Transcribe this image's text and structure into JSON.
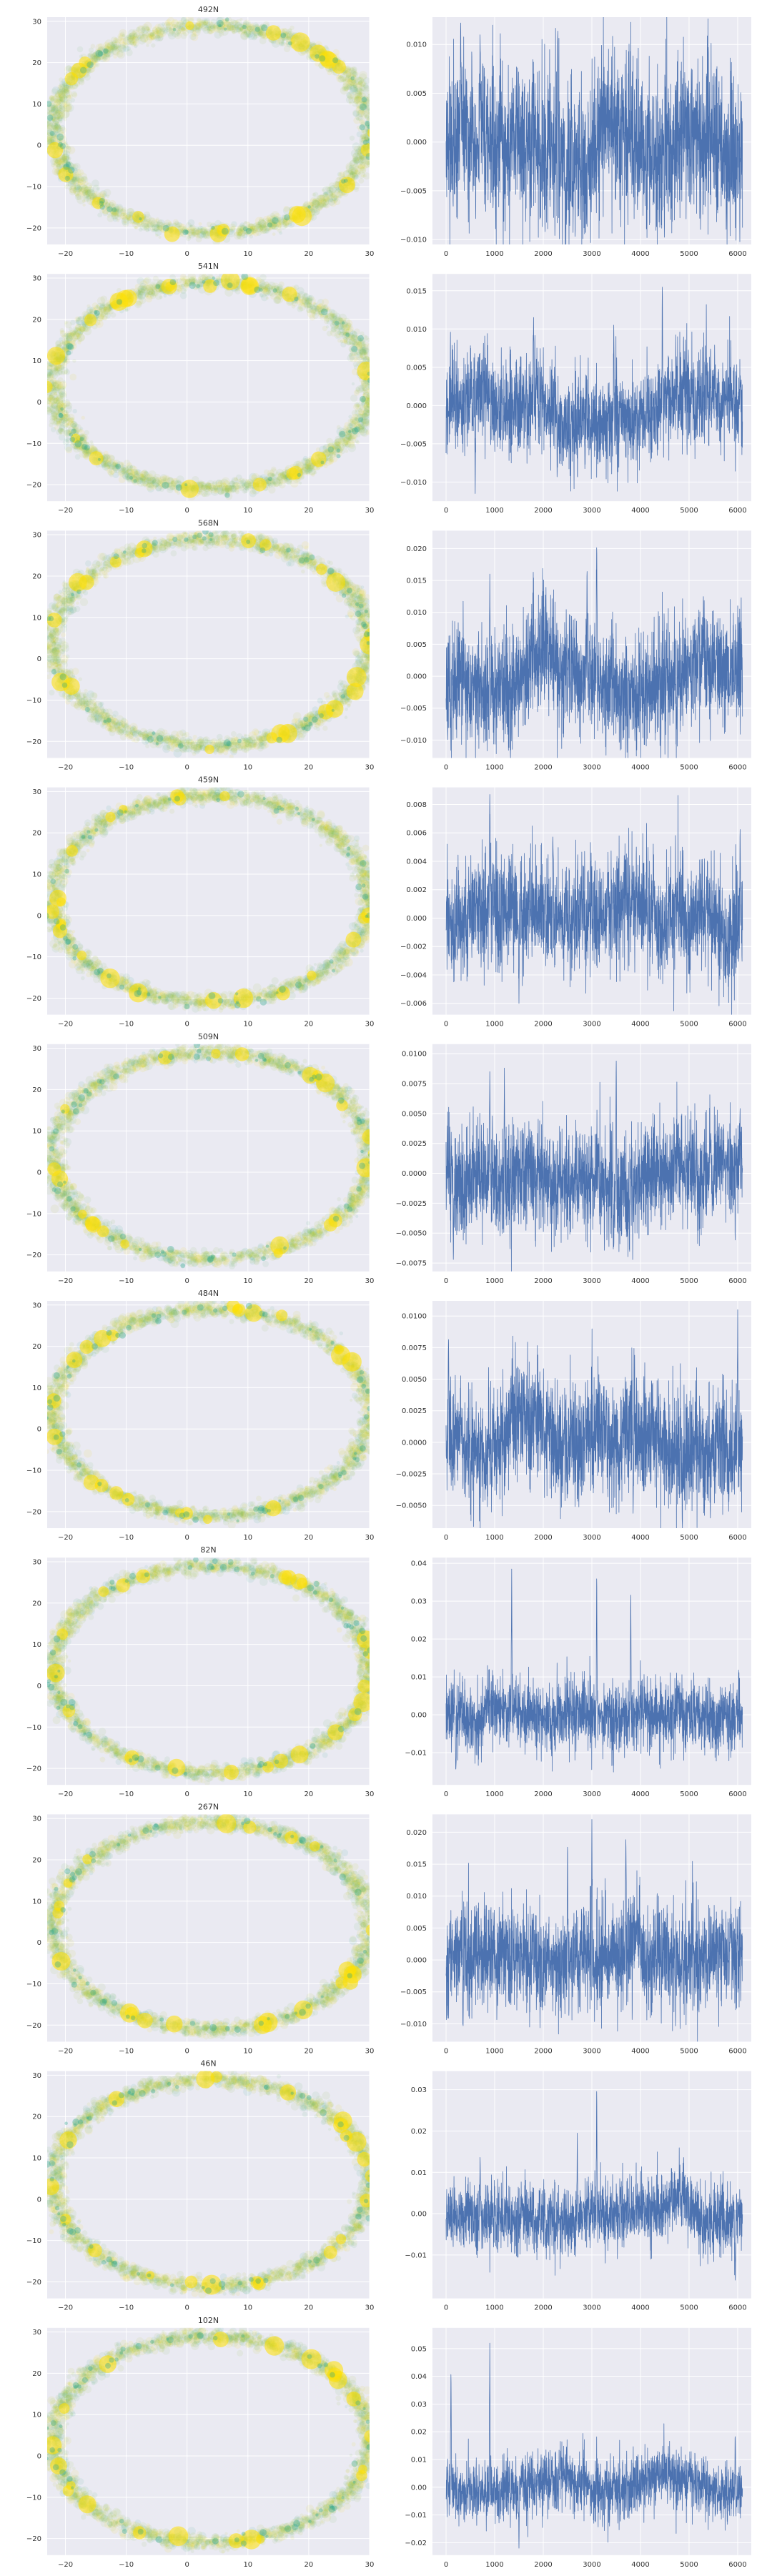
{
  "colors": {
    "panel_bg": "#eaeaf2",
    "grid": "#ffffff",
    "line": "#4c72b0",
    "scatter_low": "#2ca58d",
    "scatter_high": "#ffe000",
    "text": "#333333"
  },
  "scatter_axes": {
    "xticks": [
      -20,
      -10,
      0,
      10,
      20,
      30
    ],
    "yticks": [
      -20,
      -10,
      0,
      10,
      20,
      30
    ],
    "xlim": [
      -23,
      30
    ],
    "ylim": [
      -24,
      31
    ]
  },
  "line_axes": {
    "xticks": [
      0,
      1000,
      2000,
      3000,
      4000,
      5000,
      6000
    ],
    "xlim": [
      -280,
      6280
    ]
  },
  "chart_data": [
    {
      "type": "scatter",
      "title": "492N",
      "ellipse": {
        "cx": 4,
        "cy": 4,
        "rx": 26,
        "ry": 25
      }
    },
    {
      "type": "line",
      "series_length": 6100,
      "ylim": [
        -0.0105,
        0.0128
      ],
      "yticks": [
        -0.01,
        -0.005,
        0.0,
        0.005,
        0.01
      ],
      "ytick_labels": [
        "−0.010",
        "−0.005",
        "0.000",
        "0.005",
        "0.010"
      ],
      "amplitude": 0.0045,
      "peaks": [
        [
          300,
          0.0122
        ],
        [
          700,
          0.0122
        ],
        [
          2300,
          0.0119
        ],
        [
          2900,
          -0.0092
        ]
      ]
    },
    {
      "type": "scatter",
      "title": "541N",
      "ellipse": {
        "cx": 4,
        "cy": 4,
        "rx": 26,
        "ry": 25
      }
    },
    {
      "type": "line",
      "series_length": 6100,
      "ylim": [
        -0.0125,
        0.0172
      ],
      "yticks": [
        -0.01,
        -0.005,
        0.0,
        0.005,
        0.01,
        0.015
      ],
      "ytick_labels": [
        "−0.010",
        "−0.005",
        "0.000",
        "0.005",
        "0.010",
        "0.015"
      ],
      "amplitude": 0.0035,
      "peaks": [
        [
          600,
          -0.0115
        ],
        [
          4450,
          0.0165
        ],
        [
          1800,
          0.0115
        ],
        [
          3450,
          0.0105
        ]
      ]
    },
    {
      "type": "scatter",
      "title": "568N",
      "ellipse": {
        "cx": 4,
        "cy": 4,
        "rx": 26,
        "ry": 25
      }
    },
    {
      "type": "line",
      "series_length": 6100,
      "ylim": [
        -0.0128,
        0.0228
      ],
      "yticks": [
        -0.01,
        -0.005,
        0.0,
        0.005,
        0.01,
        0.015,
        0.02
      ],
      "ytick_labels": [
        "−0.010",
        "−0.005",
        "0.000",
        "0.005",
        "0.010",
        "0.015",
        "0.020"
      ],
      "amplitude": 0.005,
      "peaks": [
        [
          3100,
          0.022
        ],
        [
          2900,
          0.0175
        ],
        [
          900,
          0.016
        ],
        [
          100,
          -0.012
        ]
      ]
    },
    {
      "type": "scatter",
      "title": "459N",
      "ellipse": {
        "cx": 4,
        "cy": 4,
        "rx": 26,
        "ry": 25
      }
    },
    {
      "type": "line",
      "series_length": 6100,
      "ylim": [
        -0.0068,
        0.0092
      ],
      "yticks": [
        -0.006,
        -0.004,
        -0.002,
        0.0,
        0.002,
        0.004,
        0.006,
        0.008
      ],
      "ytick_labels": [
        "−0.006",
        "−0.004",
        "−0.002",
        "0.000",
        "0.002",
        "0.004",
        "0.006",
        "0.008"
      ],
      "amplitude": 0.0022,
      "peaks": [
        [
          900,
          0.0087
        ],
        [
          1500,
          -0.006
        ],
        [
          6050,
          0.0068
        ],
        [
          2200,
          0.0062
        ]
      ]
    },
    {
      "type": "scatter",
      "title": "509N",
      "ellipse": {
        "cx": 4,
        "cy": 4,
        "rx": 26,
        "ry": 25
      }
    },
    {
      "type": "line",
      "series_length": 6100,
      "ylim": [
        -0.0082,
        0.0108
      ],
      "yticks": [
        -0.0075,
        -0.005,
        -0.0025,
        0.0,
        0.0025,
        0.005,
        0.0075,
        0.01
      ],
      "ytick_labels": [
        "−0.0075",
        "−0.0050",
        "−0.0025",
        "0.0000",
        "0.0025",
        "0.0050",
        "0.0075",
        "0.0100"
      ],
      "amplitude": 0.0025,
      "peaks": [
        [
          3500,
          0.01
        ],
        [
          150,
          -0.0072
        ],
        [
          1200,
          0.0088
        ],
        [
          900,
          0.0085
        ]
      ]
    },
    {
      "type": "scatter",
      "title": "484N",
      "ellipse": {
        "cx": 4,
        "cy": 4,
        "rx": 26,
        "ry": 25
      }
    },
    {
      "type": "line",
      "series_length": 6100,
      "ylim": [
        -0.0068,
        0.0112
      ],
      "yticks": [
        -0.005,
        -0.0025,
        0.0,
        0.0025,
        0.005,
        0.0075,
        0.01
      ],
      "ytick_labels": [
        "−0.0050",
        "−0.0025",
        "0.0000",
        "0.0025",
        "0.0050",
        "0.0075",
        "0.0100"
      ],
      "amplitude": 0.0025,
      "peaks": [
        [
          6000,
          0.0105
        ],
        [
          50,
          0.009
        ],
        [
          3850,
          -0.0062
        ],
        [
          1600,
          0.006
        ]
      ]
    },
    {
      "type": "scatter",
      "title": "82N",
      "ellipse": {
        "cx": 4,
        "cy": 4,
        "rx": 26,
        "ry": 25
      }
    },
    {
      "type": "line",
      "series_length": 6100,
      "ylim": [
        -0.0185,
        0.0415
      ],
      "yticks": [
        -0.01,
        0.0,
        0.01,
        0.02,
        0.03,
        0.04
      ],
      "ytick_labels": [
        "−0.01",
        "0.00",
        "0.01",
        "0.02",
        "0.03",
        "0.04"
      ],
      "amplitude": 0.005,
      "peaks": [
        [
          1350,
          0.0385
        ],
        [
          3100,
          0.0385
        ],
        [
          3800,
          0.034
        ],
        [
          200,
          -0.016
        ]
      ]
    },
    {
      "type": "scatter",
      "title": "267N",
      "ellipse": {
        "cx": 4,
        "cy": 4,
        "rx": 26,
        "ry": 25
      }
    },
    {
      "type": "line",
      "series_length": 6100,
      "ylim": [
        -0.0128,
        0.0228
      ],
      "yticks": [
        -0.01,
        -0.005,
        0.0,
        0.005,
        0.01,
        0.015,
        0.02
      ],
      "ytick_labels": [
        "−0.010",
        "−0.005",
        "0.000",
        "0.005",
        "0.010",
        "0.015",
        "0.020"
      ],
      "amplitude": 0.0045,
      "peaks": [
        [
          3000,
          0.022
        ],
        [
          3700,
          0.02
        ],
        [
          2500,
          0.0185
        ],
        [
          350,
          -0.011
        ]
      ]
    },
    {
      "type": "scatter",
      "title": "46N",
      "ellipse": {
        "cx": 4,
        "cy": 4,
        "rx": 26,
        "ry": 25
      }
    },
    {
      "type": "line",
      "series_length": 6100,
      "ylim": [
        -0.0205,
        0.0345
      ],
      "yticks": [
        -0.01,
        0.0,
        0.01,
        0.02,
        0.03
      ],
      "ytick_labels": [
        "−0.01",
        "0.00",
        "0.01",
        "0.02",
        "0.03"
      ],
      "amplitude": 0.0045,
      "peaks": [
        [
          3100,
          0.0315
        ],
        [
          2700,
          0.0195
        ],
        [
          5950,
          -0.0175
        ],
        [
          700,
          0.015
        ]
      ]
    },
    {
      "type": "scatter",
      "title": "102N",
      "ellipse": {
        "cx": 4,
        "cy": 4,
        "rx": 26,
        "ry": 25
      }
    },
    {
      "type": "line",
      "series_length": 6100,
      "ylim": [
        -0.0245,
        0.0575
      ],
      "yticks": [
        -0.02,
        -0.01,
        0.0,
        0.01,
        0.02,
        0.03,
        0.04,
        0.05
      ],
      "ytick_labels": [
        "−0.02",
        "−0.01",
        "0.00",
        "0.01",
        "0.02",
        "0.03",
        "0.04",
        "0.05"
      ],
      "amplitude": 0.006,
      "peaks": [
        [
          900,
          0.052
        ],
        [
          100,
          0.044
        ],
        [
          5950,
          0.02
        ],
        [
          1500,
          -0.022
        ]
      ]
    }
  ]
}
